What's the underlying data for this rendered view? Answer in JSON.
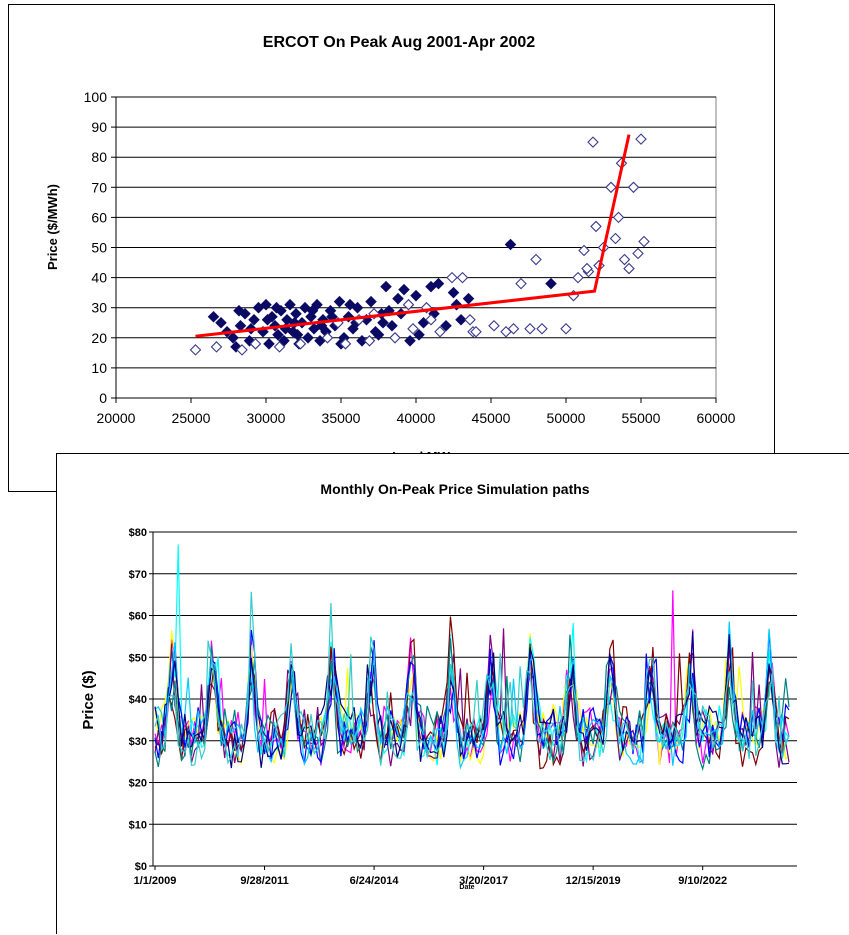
{
  "chart_data": [
    {
      "type": "scatter",
      "title": "ERCOT On Peak Aug 2001-Apr 2002",
      "xlabel": "Load MW",
      "ylabel": "Price ($/MWh)",
      "xlim": [
        20000,
        60000
      ],
      "ylim": [
        0,
        100
      ],
      "xticks": [
        "20000",
        "25000",
        "30000",
        "35000",
        "40000",
        "45000",
        "50000",
        "55000",
        "60000"
      ],
      "yticks": [
        "0",
        "10",
        "20",
        "30",
        "40",
        "50",
        "60",
        "70",
        "80",
        "90",
        "100"
      ],
      "grid": "horizontal",
      "colors": {
        "filled": "#0a0a64",
        "open": "#3a3a8c",
        "fit": "#ff0000"
      },
      "series": [
        {
          "marker": "filled-diamond",
          "points": [
            [
              26500,
              27
            ],
            [
              27000,
              25
            ],
            [
              27400,
              22
            ],
            [
              27800,
              20
            ],
            [
              28000,
              17
            ],
            [
              28300,
              24
            ],
            [
              28600,
              28
            ],
            [
              28900,
              19
            ],
            [
              29200,
              26
            ],
            [
              29500,
              30
            ],
            [
              29800,
              22
            ],
            [
              30000,
              31
            ],
            [
              30200,
              18
            ],
            [
              30400,
              27
            ],
            [
              30600,
              24
            ],
            [
              30800,
              21
            ],
            [
              31000,
              29
            ],
            [
              31200,
              19
            ],
            [
              31400,
              26
            ],
            [
              31600,
              31
            ],
            [
              31800,
              22
            ],
            [
              32000,
              28
            ],
            [
              32200,
              18
            ],
            [
              32400,
              25
            ],
            [
              32600,
              30
            ],
            [
              32800,
              20
            ],
            [
              33000,
              27
            ],
            [
              33200,
              23
            ],
            [
              33400,
              31
            ],
            [
              33600,
              19
            ],
            [
              33800,
              26
            ],
            [
              34000,
              22
            ],
            [
              34300,
              29
            ],
            [
              34600,
              24
            ],
            [
              34900,
              32
            ],
            [
              35200,
              20
            ],
            [
              35500,
              27
            ],
            [
              35800,
              23
            ],
            [
              36100,
              30
            ],
            [
              36400,
              19
            ],
            [
              36700,
              26
            ],
            [
              37000,
              32
            ],
            [
              37300,
              22
            ],
            [
              37700,
              28
            ],
            [
              38000,
              37
            ],
            [
              38400,
              24
            ],
            [
              38800,
              33
            ],
            [
              39200,
              36
            ],
            [
              39600,
              19
            ],
            [
              40000,
              34
            ],
            [
              40500,
              25
            ],
            [
              41000,
              37
            ],
            [
              41500,
              38
            ],
            [
              42000,
              24
            ],
            [
              42500,
              35
            ],
            [
              43000,
              26
            ],
            [
              43500,
              33
            ],
            [
              46300,
              51
            ],
            [
              49000,
              38
            ],
            [
              28200,
              29
            ],
            [
              29000,
              23
            ],
            [
              30700,
              30
            ],
            [
              31300,
              23
            ],
            [
              32100,
              21
            ],
            [
              33100,
              29
            ],
            [
              34400,
              27
            ],
            [
              35000,
              18
            ],
            [
              36000,
              25
            ],
            [
              37500,
              21
            ],
            [
              38200,
              29
            ],
            [
              39000,
              28
            ],
            [
              40200,
              21
            ],
            [
              41200,
              28
            ],
            [
              42700,
              31
            ],
            [
              30100,
              26
            ],
            [
              31900,
              25
            ],
            [
              33700,
              24
            ],
            [
              35600,
              31
            ],
            [
              37800,
              25
            ]
          ]
        },
        {
          "marker": "open-diamond",
          "points": [
            [
              25300,
              16
            ],
            [
              26700,
              17
            ],
            [
              28400,
              16
            ],
            [
              29300,
              18
            ],
            [
              30900,
              17
            ],
            [
              32300,
              18
            ],
            [
              34100,
              20
            ],
            [
              35300,
              18
            ],
            [
              36900,
              19
            ],
            [
              38600,
              20
            ],
            [
              39500,
              31
            ],
            [
              40700,
              30
            ],
            [
              41600,
              22
            ],
            [
              42400,
              40
            ],
            [
              43100,
              40
            ],
            [
              43800,
              22
            ],
            [
              45200,
              24
            ],
            [
              46000,
              22
            ],
            [
              46500,
              23
            ],
            [
              47000,
              38
            ],
            [
              47600,
              23
            ],
            [
              48000,
              46
            ],
            [
              48400,
              23
            ],
            [
              50000,
              23
            ],
            [
              50500,
              34
            ],
            [
              50800,
              40
            ],
            [
              51200,
              49
            ],
            [
              51500,
              42
            ],
            [
              51800,
              85
            ],
            [
              52000,
              57
            ],
            [
              52200,
              44
            ],
            [
              52500,
              50
            ],
            [
              53000,
              70
            ],
            [
              53300,
              53
            ],
            [
              53500,
              60
            ],
            [
              53700,
              78
            ],
            [
              53900,
              46
            ],
            [
              54200,
              43
            ],
            [
              54500,
              70
            ],
            [
              54800,
              48
            ],
            [
              55000,
              86
            ],
            [
              55200,
              52
            ],
            [
              39800,
              23
            ],
            [
              41000,
              26
            ],
            [
              44000,
              22
            ],
            [
              43600,
              26
            ],
            [
              51400,
              43
            ],
            [
              37200,
              28
            ],
            [
              36200,
              26
            ],
            [
              34800,
              25
            ]
          ]
        }
      ],
      "fit_line": {
        "x": [
          25300,
          51900,
          54200
        ],
        "y": [
          20.5,
          35.5,
          87.5
        ]
      }
    },
    {
      "type": "line",
      "title": "Monthly On-Peak Price Simulation paths",
      "xlabel": "Date",
      "ylabel": "Price ($)",
      "ylim": [
        0,
        80
      ],
      "xticks": [
        "1/1/2009",
        "9/28/2011",
        "6/24/2014",
        "3/20/2017",
        "12/15/2019",
        "9/10/2022"
      ],
      "yticks": [
        "$0",
        "$10",
        "$20",
        "$30",
        "$40",
        "$50",
        "$60",
        "$70",
        "$80"
      ],
      "grid": "horizontal",
      "months": 192,
      "series": [
        {
          "color": "#ff00ff",
          "seed": 11
        },
        {
          "color": "#ffff00",
          "seed": 23
        },
        {
          "color": "#00ffff",
          "seed": 37
        },
        {
          "color": "#800080",
          "seed": 41
        },
        {
          "color": "#800000",
          "seed": 53
        },
        {
          "color": "#008080",
          "seed": 67
        },
        {
          "color": "#0000ff",
          "seed": 71
        },
        {
          "color": "#00ccff",
          "seed": 83
        },
        {
          "color": "#000080",
          "seed": 97
        },
        {
          "color": "#33cccc",
          "seed": 103
        }
      ]
    }
  ]
}
